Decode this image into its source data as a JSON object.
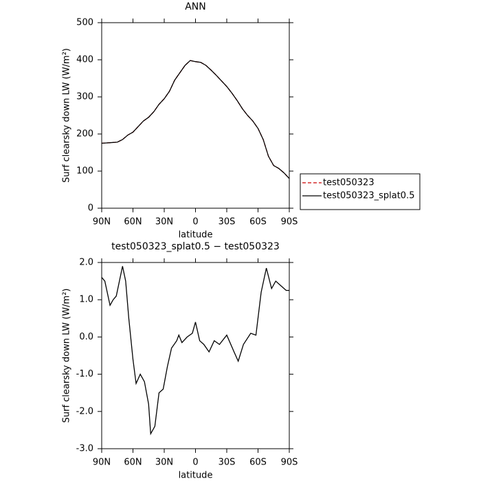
{
  "chart_data": [
    {
      "type": "line",
      "title": "ANN",
      "xlabel": "latitude",
      "ylabel": "Surf clearsky down LW (W/m²)",
      "x": [
        90,
        80,
        75,
        70,
        65,
        60,
        55,
        50,
        45,
        40,
        35,
        30,
        25,
        20,
        15,
        10,
        5,
        0,
        -5,
        -10,
        -15,
        -20,
        -25,
        -30,
        -35,
        -40,
        -45,
        -50,
        -55,
        -60,
        -65,
        -70,
        -75,
        -80,
        -85,
        -90
      ],
      "series": [
        {
          "name": "test050323",
          "color": "#cc0000",
          "dashed": true,
          "values": [
            175,
            177,
            178,
            185,
            197,
            205,
            220,
            235,
            245,
            260,
            280,
            295,
            315,
            345,
            365,
            385,
            398,
            395,
            393,
            385,
            372,
            358,
            343,
            328,
            310,
            290,
            268,
            250,
            235,
            215,
            185,
            140,
            115,
            107,
            95,
            80
          ]
        },
        {
          "name": "test050323_splat0.5",
          "color": "#000000",
          "dashed": false,
          "values": [
            175,
            177,
            178,
            185,
            197,
            205,
            220,
            235,
            245,
            260,
            280,
            295,
            315,
            345,
            365,
            385,
            398,
            395,
            393,
            385,
            372,
            358,
            343,
            328,
            310,
            290,
            268,
            250,
            235,
            215,
            185,
            140,
            115,
            107,
            95,
            80
          ]
        }
      ],
      "xlim": [
        90,
        -90
      ],
      "xticks": [
        {
          "value": 90,
          "label": "90N"
        },
        {
          "value": 60,
          "label": "60N"
        },
        {
          "value": 30,
          "label": "30N"
        },
        0,
        {
          "value": -30,
          "label": "30S"
        },
        {
          "value": -60,
          "label": "60S"
        },
        {
          "value": -90,
          "label": "90S"
        }
      ],
      "ylim": [
        0,
        500
      ],
      "yticks": [
        0,
        100,
        200,
        300,
        400,
        500
      ],
      "legend": "right"
    },
    {
      "type": "line",
      "title": "test050323_splat0.5 − test050323",
      "xlabel": "latitude",
      "ylabel": "Surf clearsky down LW (W/m²)",
      "x": [
        90,
        87,
        82,
        79,
        76,
        70,
        67,
        64,
        60,
        57,
        53,
        49,
        45,
        43,
        39,
        35,
        31,
        27,
        23,
        18,
        16,
        13,
        8,
        3,
        0,
        -4,
        -8,
        -13,
        -18,
        -23,
        -30,
        -37,
        -41,
        -46,
        -53,
        -58,
        -63,
        -68,
        -73,
        -77,
        -83,
        -87,
        -90
      ],
      "series": [
        {
          "color": "#000000",
          "dashed": false,
          "values": [
            1.6,
            1.5,
            0.85,
            1.0,
            1.1,
            1.9,
            1.5,
            0.5,
            -0.6,
            -1.25,
            -1.0,
            -1.2,
            -1.8,
            -2.6,
            -2.4,
            -1.5,
            -1.4,
            -0.8,
            -0.3,
            -0.1,
            0.05,
            -0.15,
            0.0,
            0.1,
            0.4,
            -0.1,
            -0.2,
            -0.4,
            -0.1,
            -0.2,
            0.05,
            -0.4,
            -0.65,
            -0.2,
            0.1,
            0.05,
            1.2,
            1.85,
            1.3,
            1.5,
            1.35,
            1.25,
            1.25
          ]
        }
      ],
      "xlim": [
        90,
        -90
      ],
      "xticks": [
        {
          "value": 90,
          "label": "90N"
        },
        {
          "value": 60,
          "label": "60N"
        },
        {
          "value": 30,
          "label": "30N"
        },
        0,
        {
          "value": -30,
          "label": "30S"
        },
        {
          "value": -60,
          "label": "60S"
        },
        {
          "value": -90,
          "label": "90S"
        }
      ],
      "ylim": [
        -3,
        2
      ],
      "yticks": [
        {
          "value": -3,
          "label": "-3.0"
        },
        {
          "value": -2,
          "label": "-2.0"
        },
        {
          "value": -1,
          "label": "-1.0"
        },
        {
          "value": 0,
          "label": "0.0"
        },
        {
          "value": 1,
          "label": "1.0"
        },
        {
          "value": 2,
          "label": "2.0"
        }
      ]
    }
  ]
}
